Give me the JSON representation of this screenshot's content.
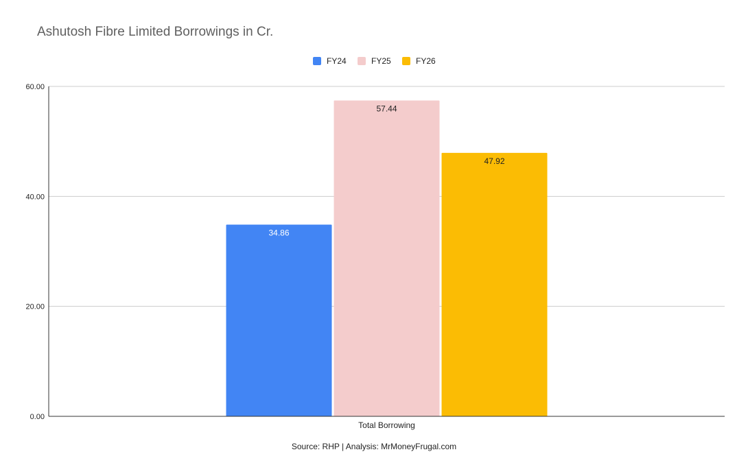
{
  "chart_data": {
    "type": "bar",
    "title": "Ashutosh Fibre Limited Borrowings in Cr.",
    "categories": [
      "Total Borrowing"
    ],
    "series": [
      {
        "name": "FY24",
        "values": [
          34.86
        ],
        "labels": [
          "34.86"
        ],
        "color": "#4285f4",
        "label_color": "#ffffff"
      },
      {
        "name": "FY25",
        "values": [
          57.44
        ],
        "labels": [
          "57.44"
        ],
        "color": "#f4cccc",
        "label_color": "#222222"
      },
      {
        "name": "FY26",
        "values": [
          47.92
        ],
        "labels": [
          "47.92"
        ],
        "color": "#fbbc04",
        "label_color": "#222222"
      }
    ],
    "ylim": [
      0,
      60
    ],
    "yticks": [
      0,
      20,
      40,
      60
    ],
    "ytick_labels": [
      "0.00",
      "20.00",
      "40.00",
      "60.00"
    ],
    "xlabel": "",
    "ylabel": "",
    "grid": true,
    "legend_position": "top-center",
    "source_note": "Source: RHP | Analysis: MrMoneyFrugal.com"
  }
}
